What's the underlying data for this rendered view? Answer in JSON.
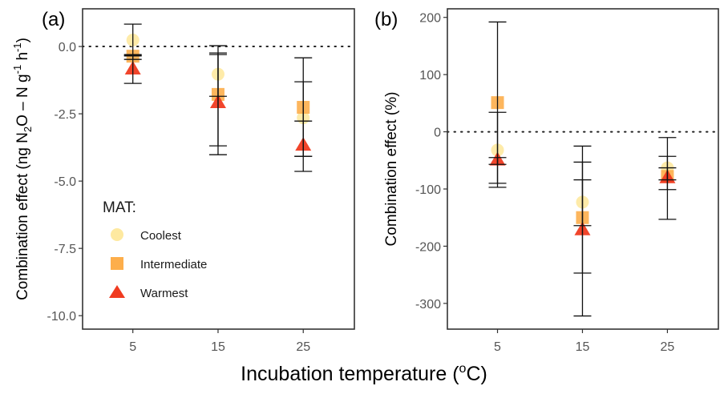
{
  "figure": {
    "xlabel_main": "Incubation temperature (",
    "xlabel_sup": "o",
    "xlabel_tail": "C)"
  },
  "chart_data": [
    {
      "type": "scatter",
      "panel_label": "(a)",
      "ylabel_parts": [
        "Combination effect (ng N",
        "2",
        "O – N g",
        "-1",
        " h",
        "-1",
        ")"
      ],
      "xlabel": "Incubation temperature (oC)",
      "x_ticks": [
        5,
        15,
        25
      ],
      "x_tick_labels": [
        "5",
        "15",
        "25"
      ],
      "y_ticks": [
        0.0,
        -2.5,
        -5.0,
        -7.5,
        -10.0
      ],
      "y_tick_labels": [
        "0.0",
        "-2.5",
        "-5.0",
        "-7.5",
        "-10.0"
      ],
      "ylim": [
        -10.5,
        1.4
      ],
      "xlim": [
        -0.9,
        31
      ],
      "reference_line": 0,
      "grid": false,
      "legend": {
        "title": "MAT:",
        "placement": "bottom-left-inside",
        "entries": [
          "Coolest",
          "Intermediate",
          "Warmest"
        ]
      },
      "series": [
        {
          "name": "Coolest",
          "shape": "circle",
          "color": "#FEE9A0",
          "x": [
            5,
            15,
            25
          ],
          "y": [
            0.24,
            -1.03,
            -2.65
          ],
          "ymin": [
            -0.35,
            -1.85,
            -4.08
          ],
          "ymax": [
            0.83,
            -0.24,
            -1.31
          ]
        },
        {
          "name": "Intermediate",
          "shape": "square",
          "color": "#FDAE4B",
          "x": [
            5,
            15,
            25
          ],
          "y": [
            -0.36,
            -1.78,
            -2.26
          ],
          "ymin": [
            -0.48,
            -3.69,
            -4.08
          ],
          "ymax": [
            -0.33,
            0.03,
            -0.42
          ]
        },
        {
          "name": "Warmest",
          "shape": "triangle",
          "color": "#F03B20",
          "x": [
            5,
            15,
            25
          ],
          "y": [
            -0.83,
            -2.08,
            -3.66
          ],
          "ymin": [
            -1.37,
            -4.02,
            -4.64
          ],
          "ymax": [
            -0.3,
            -0.3,
            -2.77
          ]
        }
      ]
    },
    {
      "type": "scatter",
      "panel_label": "(b)",
      "ylabel_parts": [
        "Combination effect (%)"
      ],
      "xlabel": "Incubation temperature (oC)",
      "x_ticks": [
        5,
        15,
        25
      ],
      "x_tick_labels": [
        "5",
        "15",
        "25"
      ],
      "y_ticks": [
        200,
        100,
        0,
        -100,
        -200,
        -300
      ],
      "y_tick_labels": [
        "200",
        "100",
        "0",
        "-100",
        "-200",
        "-300"
      ],
      "ylim": [
        -345,
        215
      ],
      "xlim": [
        -0.9,
        31
      ],
      "reference_line": 0,
      "grid": false,
      "series": [
        {
          "name": "Coolest",
          "shape": "circle",
          "color": "#FEE9A0",
          "x": [
            5,
            15,
            25
          ],
          "y": [
            -32,
            -123,
            -63
          ],
          "ymin": [
            -97,
            -164,
            -84
          ],
          "ymax": [
            34,
            -84,
            -43
          ]
        },
        {
          "name": "Intermediate",
          "shape": "square",
          "color": "#FDAE4B",
          "x": [
            5,
            15,
            25
          ],
          "y": [
            51,
            -150,
            -78
          ],
          "ymin": [
            -90,
            -247,
            -101
          ],
          "ymax": [
            192,
            -53,
            -63
          ]
        },
        {
          "name": "Warmest",
          "shape": "triangle",
          "color": "#F03B20",
          "x": [
            5,
            15,
            25
          ],
          "y": [
            -49,
            -171,
            -80
          ],
          "ymin": [
            -57,
            -322,
            -153
          ],
          "ymax": [
            -45,
            -25,
            -10
          ]
        }
      ]
    }
  ]
}
